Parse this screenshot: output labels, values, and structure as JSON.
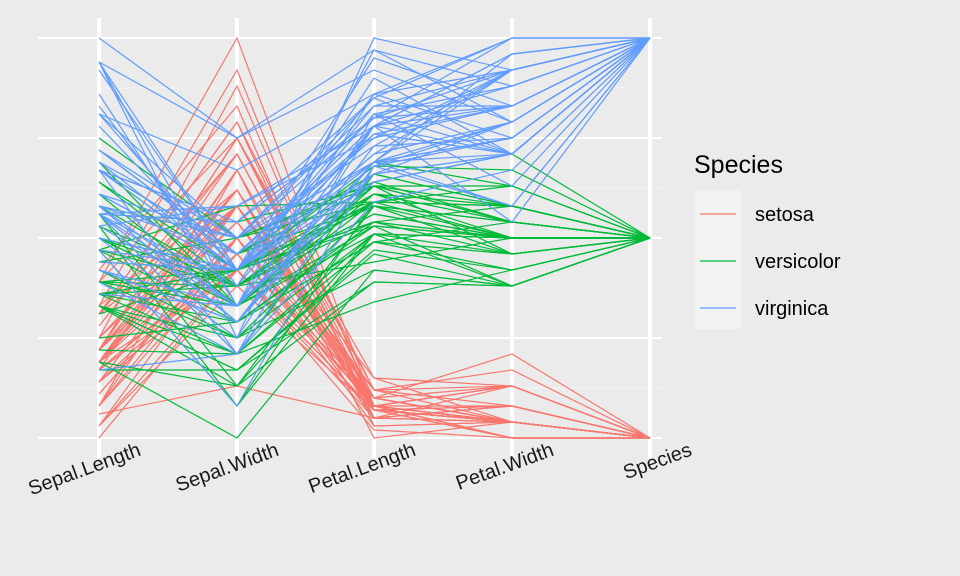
{
  "chart_data": {
    "type": "line",
    "subtype": "parallel-coordinates",
    "scale": "each axis scaled to its own min-max (0-1)",
    "x_axes": [
      "Sepal.Length",
      "Sepal.Width",
      "Petal.Length",
      "Petal.Width",
      "Species"
    ],
    "ylim": [
      0,
      1
    ],
    "y_tick_labels_shown": false,
    "grid": true,
    "legend": {
      "title": "Species",
      "position": "right",
      "entries": [
        {
          "name": "setosa",
          "color": "#f8766d"
        },
        {
          "name": "versicolor",
          "color": "#00ba38"
        },
        {
          "name": "virginica",
          "color": "#619cff"
        }
      ]
    },
    "series": [
      {
        "name": "setosa",
        "color": "#f8766d",
        "lines": [
          [
            0.22,
            0.62,
            0.07,
            0.04,
            0
          ],
          [
            0.17,
            0.42,
            0.07,
            0.04,
            0
          ],
          [
            0.11,
            0.5,
            0.05,
            0.04,
            0
          ],
          [
            0.08,
            0.46,
            0.08,
            0.04,
            0
          ],
          [
            0.19,
            0.67,
            0.07,
            0.04,
            0
          ],
          [
            0.31,
            0.79,
            0.12,
            0.13,
            0
          ],
          [
            0.08,
            0.58,
            0.07,
            0.08,
            0
          ],
          [
            0.19,
            0.58,
            0.08,
            0.04,
            0
          ],
          [
            0.03,
            0.38,
            0.07,
            0.04,
            0
          ],
          [
            0.17,
            0.46,
            0.08,
            0.0,
            0
          ],
          [
            0.31,
            0.71,
            0.08,
            0.04,
            0
          ],
          [
            0.14,
            0.58,
            0.1,
            0.04,
            0
          ],
          [
            0.14,
            0.42,
            0.07,
            0.0,
            0
          ],
          [
            0.0,
            0.42,
            0.02,
            0.0,
            0
          ],
          [
            0.42,
            0.83,
            0.03,
            0.04,
            0
          ],
          [
            0.39,
            1.0,
            0.08,
            0.13,
            0
          ],
          [
            0.31,
            0.79,
            0.05,
            0.13,
            0
          ],
          [
            0.22,
            0.62,
            0.07,
            0.08,
            0
          ],
          [
            0.39,
            0.75,
            0.12,
            0.08,
            0
          ],
          [
            0.22,
            0.75,
            0.08,
            0.08,
            0
          ],
          [
            0.31,
            0.58,
            0.12,
            0.04,
            0
          ],
          [
            0.22,
            0.71,
            0.08,
            0.13,
            0
          ],
          [
            0.08,
            0.67,
            0.0,
            0.04,
            0
          ],
          [
            0.22,
            0.54,
            0.12,
            0.17,
            0
          ],
          [
            0.14,
            0.58,
            0.15,
            0.04,
            0
          ],
          [
            0.19,
            0.42,
            0.1,
            0.04,
            0
          ],
          [
            0.19,
            0.58,
            0.1,
            0.13,
            0
          ],
          [
            0.25,
            0.62,
            0.08,
            0.04,
            0
          ],
          [
            0.25,
            0.58,
            0.07,
            0.04,
            0
          ],
          [
            0.11,
            0.5,
            0.1,
            0.04,
            0
          ],
          [
            0.14,
            0.46,
            0.1,
            0.04,
            0
          ],
          [
            0.31,
            0.58,
            0.08,
            0.13,
            0
          ],
          [
            0.25,
            0.88,
            0.08,
            0.0,
            0
          ],
          [
            0.33,
            0.92,
            0.07,
            0.04,
            0
          ],
          [
            0.17,
            0.46,
            0.08,
            0.0,
            0
          ],
          [
            0.19,
            0.5,
            0.03,
            0.04,
            0
          ],
          [
            0.33,
            0.62,
            0.05,
            0.04,
            0
          ],
          [
            0.17,
            0.67,
            0.07,
            0.0,
            0
          ],
          [
            0.03,
            0.42,
            0.05,
            0.04,
            0
          ],
          [
            0.22,
            0.58,
            0.08,
            0.04,
            0
          ],
          [
            0.19,
            0.62,
            0.05,
            0.08,
            0
          ],
          [
            0.06,
            0.13,
            0.05,
            0.08,
            0
          ],
          [
            0.03,
            0.5,
            0.05,
            0.04,
            0
          ],
          [
            0.19,
            0.62,
            0.1,
            0.21,
            0
          ],
          [
            0.22,
            0.75,
            0.15,
            0.13,
            0
          ],
          [
            0.14,
            0.42,
            0.07,
            0.08,
            0
          ],
          [
            0.22,
            0.75,
            0.1,
            0.04,
            0
          ],
          [
            0.08,
            0.5,
            0.07,
            0.04,
            0
          ],
          [
            0.28,
            0.71,
            0.08,
            0.04,
            0
          ],
          [
            0.19,
            0.54,
            0.07,
            0.04,
            0
          ]
        ]
      },
      {
        "name": "versicolor",
        "color": "#00ba38",
        "lines": [
          [
            0.75,
            0.5,
            0.63,
            0.54,
            0.5
          ],
          [
            0.58,
            0.5,
            0.59,
            0.58,
            0.5
          ],
          [
            0.72,
            0.46,
            0.66,
            0.58,
            0.5
          ],
          [
            0.33,
            0.13,
            0.51,
            0.5,
            0.5
          ],
          [
            0.61,
            0.33,
            0.61,
            0.58,
            0.5
          ],
          [
            0.39,
            0.33,
            0.59,
            0.5,
            0.5
          ],
          [
            0.56,
            0.54,
            0.63,
            0.63,
            0.5
          ],
          [
            0.17,
            0.17,
            0.39,
            0.38,
            0.5
          ],
          [
            0.64,
            0.38,
            0.61,
            0.5,
            0.5
          ],
          [
            0.25,
            0.29,
            0.49,
            0.54,
            0.5
          ],
          [
            0.19,
            0.0,
            0.42,
            0.38,
            0.5
          ],
          [
            0.44,
            0.42,
            0.54,
            0.58,
            0.5
          ],
          [
            0.47,
            0.08,
            0.51,
            0.38,
            0.5
          ],
          [
            0.5,
            0.38,
            0.63,
            0.54,
            0.5
          ],
          [
            0.36,
            0.38,
            0.44,
            0.5,
            0.5
          ],
          [
            0.67,
            0.46,
            0.58,
            0.54,
            0.5
          ],
          [
            0.36,
            0.42,
            0.59,
            0.58,
            0.5
          ],
          [
            0.42,
            0.29,
            0.53,
            0.38,
            0.5
          ],
          [
            0.53,
            0.08,
            0.59,
            0.58,
            0.5
          ],
          [
            0.36,
            0.21,
            0.49,
            0.42,
            0.5
          ],
          [
            0.44,
            0.5,
            0.64,
            0.71,
            0.5
          ],
          [
            0.5,
            0.33,
            0.51,
            0.5,
            0.5
          ],
          [
            0.56,
            0.21,
            0.66,
            0.58,
            0.5
          ],
          [
            0.5,
            0.33,
            0.63,
            0.46,
            0.5
          ],
          [
            0.58,
            0.38,
            0.56,
            0.5,
            0.5
          ],
          [
            0.64,
            0.42,
            0.58,
            0.54,
            0.5
          ],
          [
            0.69,
            0.33,
            0.64,
            0.54,
            0.5
          ],
          [
            0.67,
            0.42,
            0.68,
            0.67,
            0.5
          ],
          [
            0.47,
            0.38,
            0.59,
            0.58,
            0.5
          ],
          [
            0.39,
            0.25,
            0.42,
            0.38,
            0.5
          ],
          [
            0.33,
            0.17,
            0.47,
            0.42,
            0.5
          ],
          [
            0.33,
            0.17,
            0.46,
            0.38,
            0.5
          ],
          [
            0.42,
            0.29,
            0.49,
            0.46,
            0.5
          ],
          [
            0.47,
            0.29,
            0.69,
            0.63,
            0.5
          ],
          [
            0.31,
            0.42,
            0.59,
            0.58,
            0.5
          ],
          [
            0.47,
            0.58,
            0.59,
            0.63,
            0.5
          ],
          [
            0.67,
            0.46,
            0.63,
            0.58,
            0.5
          ],
          [
            0.56,
            0.13,
            0.58,
            0.5,
            0.5
          ],
          [
            0.36,
            0.42,
            0.53,
            0.5,
            0.5
          ],
          [
            0.33,
            0.21,
            0.51,
            0.5,
            0.5
          ],
          [
            0.33,
            0.25,
            0.58,
            0.46,
            0.5
          ],
          [
            0.5,
            0.42,
            0.61,
            0.54,
            0.5
          ],
          [
            0.42,
            0.25,
            0.51,
            0.46,
            0.5
          ],
          [
            0.19,
            0.13,
            0.39,
            0.38,
            0.5
          ],
          [
            0.36,
            0.29,
            0.54,
            0.5,
            0.5
          ],
          [
            0.39,
            0.42,
            0.54,
            0.46,
            0.5
          ],
          [
            0.39,
            0.38,
            0.54,
            0.5,
            0.5
          ],
          [
            0.53,
            0.38,
            0.56,
            0.5,
            0.5
          ],
          [
            0.22,
            0.21,
            0.34,
            0.42,
            0.5
          ],
          [
            0.39,
            0.33,
            0.53,
            0.5,
            0.5
          ]
        ]
      },
      {
        "name": "virginica",
        "color": "#619cff",
        "lines": [
          [
            0.56,
            0.54,
            0.85,
            1.0,
            1
          ],
          [
            0.42,
            0.29,
            0.69,
            0.75,
            1
          ],
          [
            0.78,
            0.42,
            0.83,
            0.83,
            1
          ],
          [
            0.56,
            0.38,
            0.78,
            0.71,
            1
          ],
          [
            0.61,
            0.42,
            0.81,
            0.88,
            1
          ],
          [
            0.92,
            0.42,
            0.95,
            0.83,
            1
          ],
          [
            0.17,
            0.21,
            0.59,
            0.67,
            1
          ],
          [
            0.83,
            0.38,
            0.9,
            0.71,
            1
          ],
          [
            0.67,
            0.21,
            0.81,
            0.71,
            1
          ],
          [
            0.81,
            0.67,
            0.86,
            1.0,
            1
          ],
          [
            0.61,
            0.5,
            0.69,
            0.79,
            1
          ],
          [
            0.58,
            0.29,
            0.73,
            0.75,
            1
          ],
          [
            0.69,
            0.42,
            0.76,
            0.83,
            1
          ],
          [
            0.39,
            0.21,
            0.68,
            0.79,
            1
          ],
          [
            0.42,
            0.33,
            0.69,
            0.96,
            1
          ],
          [
            0.58,
            0.5,
            0.73,
            0.92,
            1
          ],
          [
            0.61,
            0.42,
            0.76,
            0.71,
            1
          ],
          [
            0.94,
            0.75,
            0.97,
            0.88,
            1
          ],
          [
            0.94,
            0.25,
            1.0,
            0.92,
            1
          ],
          [
            0.47,
            0.08,
            0.68,
            0.58,
            1
          ],
          [
            0.72,
            0.5,
            0.8,
            0.92,
            1
          ],
          [
            0.36,
            0.33,
            0.66,
            0.79,
            1
          ],
          [
            0.94,
            0.33,
            0.97,
            0.79,
            1
          ],
          [
            0.56,
            0.29,
            0.66,
            0.71,
            1
          ],
          [
            0.67,
            0.54,
            0.8,
            0.83,
            1
          ],
          [
            0.81,
            0.5,
            0.85,
            0.71,
            1
          ],
          [
            0.53,
            0.33,
            0.64,
            0.71,
            1
          ],
          [
            0.5,
            0.42,
            0.66,
            0.71,
            1
          ],
          [
            0.58,
            0.33,
            0.78,
            0.83,
            1
          ],
          [
            0.81,
            0.42,
            0.81,
            0.63,
            1
          ],
          [
            0.86,
            0.33,
            0.86,
            0.75,
            1
          ],
          [
            1.0,
            0.75,
            0.92,
            0.79,
            1
          ],
          [
            0.58,
            0.33,
            0.78,
            0.88,
            1
          ],
          [
            0.56,
            0.33,
            0.69,
            0.58,
            1
          ],
          [
            0.5,
            0.25,
            0.78,
            0.54,
            1
          ],
          [
            0.94,
            0.42,
            0.86,
            0.92,
            1
          ],
          [
            0.56,
            0.58,
            0.78,
            0.96,
            1
          ],
          [
            0.58,
            0.46,
            0.76,
            0.71,
            1
          ],
          [
            0.47,
            0.42,
            0.64,
            0.71,
            1
          ],
          [
            0.72,
            0.46,
            0.75,
            0.83,
            1
          ],
          [
            0.67,
            0.46,
            0.78,
            0.96,
            1
          ],
          [
            0.72,
            0.46,
            0.69,
            0.92,
            1
          ],
          [
            0.42,
            0.29,
            0.69,
            0.75,
            1
          ],
          [
            0.69,
            0.5,
            0.83,
            0.92,
            1
          ],
          [
            0.67,
            0.54,
            0.8,
            1.0,
            1
          ],
          [
            0.67,
            0.42,
            0.71,
            0.92,
            1
          ],
          [
            0.56,
            0.21,
            0.68,
            0.75,
            1
          ],
          [
            0.61,
            0.42,
            0.71,
            0.79,
            1
          ],
          [
            0.53,
            0.58,
            0.75,
            0.92,
            1
          ],
          [
            0.44,
            0.42,
            0.69,
            0.71,
            1
          ]
        ]
      }
    ]
  }
}
